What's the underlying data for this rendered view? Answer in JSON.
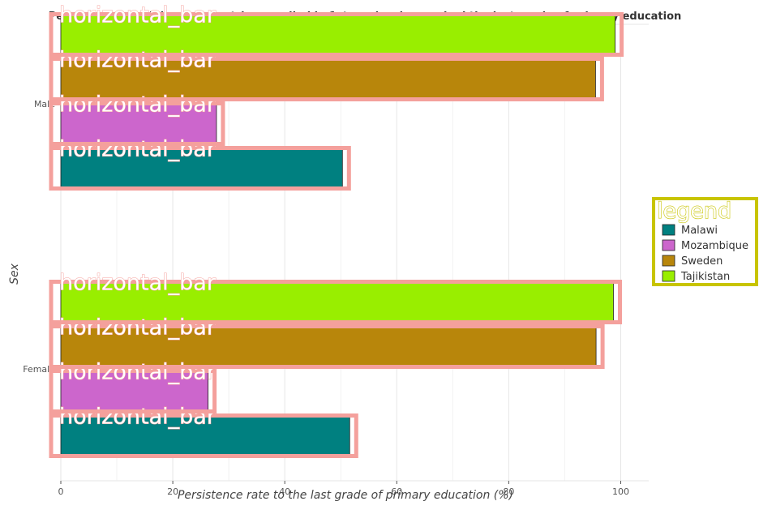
{
  "chart_data": {
    "type": "bar",
    "orientation": "horizontal",
    "title": "Percentage of children in countries enrolled in 1st grade who reached the last grade of primary education",
    "xlabel": "Persistence rate to the last grade of primary education (%)",
    "ylabel": "Sex",
    "categories": [
      "Female",
      "Male"
    ],
    "xlim": [
      0,
      105
    ],
    "xticks": [
      0,
      20,
      40,
      60,
      80,
      100
    ],
    "grid": true,
    "legend": {
      "title": "legend",
      "placement": "right"
    },
    "series": [
      {
        "name": "Malawi",
        "color": "#008080",
        "values": [
          51.6,
          50.3
        ]
      },
      {
        "name": "Mozambique",
        "color": "#cc66cc",
        "values": [
          26.3,
          27.8
        ]
      },
      {
        "name": "Sweden",
        "color": "#b8860b",
        "values": [
          95.6,
          95.5
        ]
      },
      {
        "name": "Tajikistan",
        "color": "#99ee00",
        "values": [
          98.7,
          99.0
        ]
      }
    ],
    "annotation_label": "horizontal_bar"
  }
}
